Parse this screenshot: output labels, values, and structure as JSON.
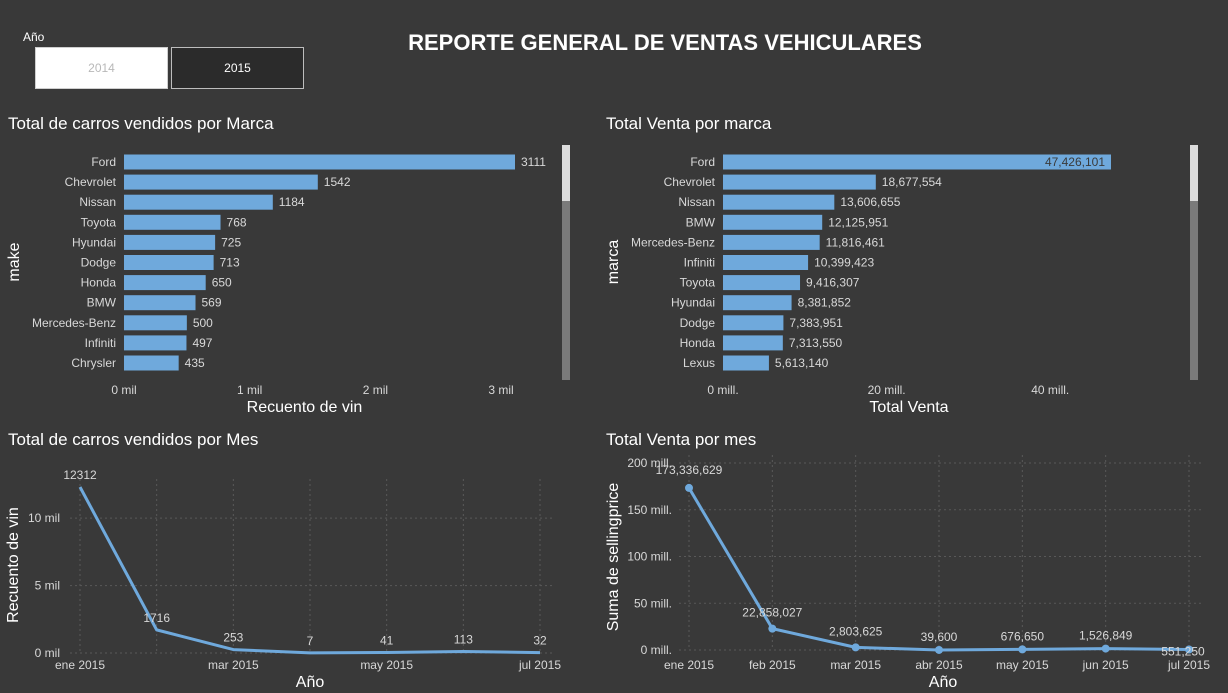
{
  "page_title": "REPORTE GENERAL DE VENTAS VEHICULARES",
  "slicer": {
    "title": "Año",
    "options": [
      "2014",
      "2015"
    ],
    "selected": "2015"
  },
  "colors": {
    "background": "#393939",
    "bar": "#6fa9dc",
    "text": "#ffffff",
    "axis_text": "#d8d8d8",
    "gridline": "#595959"
  },
  "chart_data": [
    {
      "type": "bar",
      "orientation": "horizontal",
      "title": "Total de carros vendidos por Marca",
      "xlabel": "Recuento de vin",
      "ylabel": "make",
      "categories": [
        "Ford",
        "Chevrolet",
        "Nissan",
        "Toyota",
        "Hyundai",
        "Dodge",
        "Honda",
        "BMW",
        "Mercedes-Benz",
        "Infiniti",
        "Chrysler"
      ],
      "values": [
        3111,
        1542,
        1184,
        768,
        725,
        713,
        650,
        569,
        500,
        497,
        435
      ],
      "value_labels": [
        "3111",
        "1542",
        "1184",
        "768",
        "725",
        "713",
        "650",
        "569",
        "500",
        "497",
        "435"
      ],
      "xlim": [
        0,
        3111
      ],
      "x_ticks": [
        0,
        1000,
        2000,
        3000
      ],
      "x_tick_labels": [
        "0 mil",
        "1 mil",
        "2 mil",
        "3 mil"
      ],
      "scrollbar": true
    },
    {
      "type": "bar",
      "orientation": "horizontal",
      "title": "Total Venta por marca",
      "xlabel": "Total Venta",
      "ylabel": "marca",
      "categories": [
        "Ford",
        "Chevrolet",
        "Nissan",
        "BMW",
        "Mercedes-Benz",
        "Infiniti",
        "Toyota",
        "Hyundai",
        "Dodge",
        "Honda",
        "Lexus"
      ],
      "values": [
        47426101,
        18677554,
        13606655,
        12125951,
        11816461,
        10399423,
        9416307,
        8381852,
        7383951,
        7313550,
        5613140
      ],
      "value_labels": [
        "47,426,101",
        "18,677,554",
        "13,606,655",
        "12,125,951",
        "11,816,461",
        "10,399,423",
        "9,416,307",
        "8,381,852",
        "7,383,951",
        "7,313,550",
        "5,613,140"
      ],
      "xlim": [
        0,
        47426101
      ],
      "x_ticks": [
        0,
        20000000,
        40000000
      ],
      "x_tick_labels": [
        "0 mill.",
        "20 mill.",
        "40 mill."
      ],
      "scrollbar": true
    },
    {
      "type": "line",
      "title": "Total de carros vendidos por Mes",
      "xlabel": "Año",
      "ylabel": "Recuento de vin",
      "x": [
        "ene 2015",
        "feb 2015",
        "mar 2015",
        "abr 2015",
        "may 2015",
        "jun 2015",
        "jul 2015"
      ],
      "x_tick_labels": [
        "ene 2015",
        "mar 2015",
        "may 2015",
        "jul 2015"
      ],
      "values": [
        12312,
        1716,
        253,
        7,
        41,
        113,
        32
      ],
      "value_labels": [
        "12312",
        "1716",
        "253",
        "7",
        "41",
        "113",
        "32"
      ],
      "ylim": [
        0,
        12312
      ],
      "y_ticks": [
        0,
        5000,
        10000
      ],
      "y_tick_labels": [
        "0 mil",
        "5 mil",
        "10 mil"
      ],
      "markers": false,
      "grid": true
    },
    {
      "type": "line",
      "title": "Total Venta por mes",
      "xlabel": "Año",
      "ylabel": "Suma de sellingprice",
      "x": [
        "ene 2015",
        "feb 2015",
        "mar 2015",
        "abr 2015",
        "may 2015",
        "jun 2015",
        "jul 2015"
      ],
      "x_tick_labels": [
        "ene 2015",
        "feb 2015",
        "mar 2015",
        "abr 2015",
        "may 2015",
        "jun 2015",
        "jul 2015"
      ],
      "values": [
        173336629,
        22858027,
        2803625,
        39600,
        676650,
        1526849,
        551250
      ],
      "value_labels": [
        "173,336,629",
        "22,858,027",
        "2,803,625",
        "39,600",
        "676,650",
        "1,526,849",
        "551,250"
      ],
      "ylim": [
        0,
        200000000
      ],
      "y_ticks": [
        0,
        50000000,
        100000000,
        150000000,
        200000000
      ],
      "y_tick_labels": [
        "0 mill.",
        "50 mill.",
        "100 mill.",
        "150 mill.",
        "200 mill."
      ],
      "markers": true,
      "grid": true
    }
  ]
}
